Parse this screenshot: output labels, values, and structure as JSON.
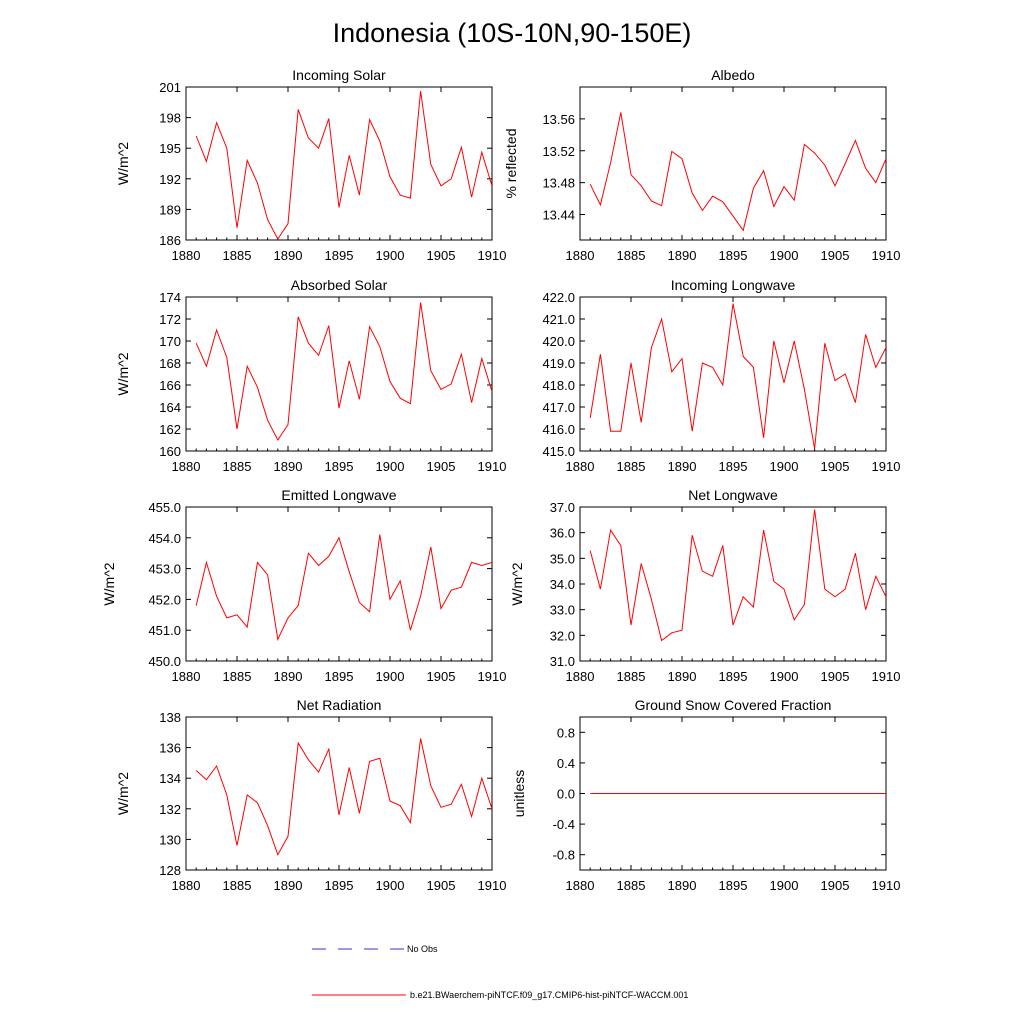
{
  "figure": {
    "title": "Indonesia (10S-10N,90-150E)"
  },
  "colors": {
    "model": "#ff0000",
    "obs": "#3333cc",
    "frame": "#000000"
  },
  "legend": {
    "obs_label": "No Obs",
    "model_label": "b.e21.BWaerchem-piNTCF.f09_g17.CMIP6-hist-piNTCF-WACCM.001"
  },
  "chart_data": [
    {
      "type": "line",
      "title": "Incoming Solar",
      "xlabel": "",
      "ylabel": "W/m^2",
      "xlim": [
        1880,
        1910
      ],
      "ylim": [
        186,
        201
      ],
      "xticks": [
        1880,
        1885,
        1890,
        1895,
        1900,
        1905,
        1910
      ],
      "yticks": [
        186,
        189,
        192,
        195,
        198,
        201
      ],
      "ytick_labels": [
        "186",
        "189",
        "192",
        "195",
        "198",
        "201"
      ],
      "ylabel_side": "left",
      "x": [
        1881,
        1882,
        1883,
        1884,
        1885,
        1886,
        1887,
        1888,
        1889,
        1890,
        1891,
        1892,
        1893,
        1894,
        1895,
        1896,
        1897,
        1898,
        1899,
        1900,
        1901,
        1902,
        1903,
        1904,
        1905,
        1906,
        1907,
        1908,
        1909,
        1910
      ],
      "series": [
        {
          "name": "b.e21.BWaerchem-piNTCF.f09_g17.CMIP6-hist-piNTCF-WACCM.001",
          "values": [
            196.2,
            193.7,
            197.5,
            195.0,
            187.2,
            193.8,
            191.6,
            188.0,
            186.1,
            187.6,
            198.8,
            196.0,
            195.0,
            197.9,
            189.2,
            194.3,
            190.4,
            197.8,
            195.7,
            192.2,
            190.4,
            190.1,
            200.6,
            193.4,
            191.3,
            192.0,
            195.1,
            190.2,
            194.6,
            191.3
          ]
        }
      ]
    },
    {
      "type": "line",
      "title": "Albedo",
      "xlabel": "",
      "ylabel": "% reflected",
      "xlim": [
        1880,
        1910
      ],
      "ylim": [
        13.408,
        13.6
      ],
      "xticks": [
        1880,
        1885,
        1890,
        1895,
        1900,
        1905,
        1910
      ],
      "yticks": [
        13.44,
        13.48,
        13.52,
        13.56
      ],
      "ytick_labels": [
        "13.44",
        "13.48",
        "13.52",
        "13.56"
      ],
      "ylabel_side": "left",
      "x": [
        1881,
        1882,
        1883,
        1884,
        1885,
        1886,
        1887,
        1888,
        1889,
        1890,
        1891,
        1892,
        1893,
        1894,
        1895,
        1896,
        1897,
        1898,
        1899,
        1900,
        1901,
        1902,
        1903,
        1904,
        1905,
        1906,
        1907,
        1908,
        1909,
        1910
      ],
      "series": [
        {
          "name": "b.e21.BWaerchem-piNTCF.f09_g17.CMIP6-hist-piNTCF-WACCM.001",
          "values": [
            13.478,
            13.452,
            13.505,
            13.568,
            13.49,
            13.476,
            13.457,
            13.451,
            13.519,
            13.51,
            13.467,
            13.445,
            13.463,
            13.456,
            13.438,
            13.42,
            13.473,
            13.495,
            13.45,
            13.475,
            13.458,
            13.528,
            13.517,
            13.502,
            13.476,
            13.504,
            13.533,
            13.498,
            13.48,
            13.51
          ]
        }
      ]
    },
    {
      "type": "line",
      "title": "Absorbed Solar",
      "xlabel": "",
      "ylabel": "W/m^2",
      "xlim": [
        1880,
        1910
      ],
      "ylim": [
        160,
        174
      ],
      "xticks": [
        1880,
        1885,
        1890,
        1895,
        1900,
        1905,
        1910
      ],
      "yticks": [
        160,
        162,
        164,
        166,
        168,
        170,
        172,
        174
      ],
      "ytick_labels": [
        "160",
        "162",
        "164",
        "166",
        "168",
        "170",
        "172",
        "174"
      ],
      "ylabel_side": "left",
      "x": [
        1881,
        1882,
        1883,
        1884,
        1885,
        1886,
        1887,
        1888,
        1889,
        1890,
        1891,
        1892,
        1893,
        1894,
        1895,
        1896,
        1897,
        1898,
        1899,
        1900,
        1901,
        1902,
        1903,
        1904,
        1905,
        1906,
        1907,
        1908,
        1909,
        1910
      ],
      "series": [
        {
          "name": "b.e21.BWaerchem-piNTCF.f09_g17.CMIP6-hist-piNTCF-WACCM.001",
          "values": [
            169.8,
            167.7,
            171.0,
            168.5,
            162.0,
            167.7,
            165.8,
            162.8,
            161.0,
            162.4,
            172.2,
            169.8,
            168.7,
            171.4,
            163.9,
            168.2,
            164.7,
            171.3,
            169.5,
            166.3,
            164.8,
            164.3,
            173.5,
            167.3,
            165.6,
            166.1,
            168.8,
            164.4,
            168.4,
            165.4
          ]
        }
      ]
    },
    {
      "type": "line",
      "title": "Incoming Longwave",
      "xlabel": "",
      "ylabel": "",
      "xlim": [
        1880,
        1910
      ],
      "ylim": [
        415,
        422
      ],
      "xticks": [
        1880,
        1885,
        1890,
        1895,
        1900,
        1905,
        1910
      ],
      "yticks": [
        415,
        416,
        417,
        418,
        419,
        420,
        421,
        422
      ],
      "ytick_labels": [
        "415.0",
        "416.0",
        "417.0",
        "418.0",
        "419.0",
        "420.0",
        "421.0",
        "422.0"
      ],
      "ylabel_side": "left",
      "x": [
        1881,
        1882,
        1883,
        1884,
        1885,
        1886,
        1887,
        1888,
        1889,
        1890,
        1891,
        1892,
        1893,
        1894,
        1895,
        1896,
        1897,
        1898,
        1899,
        1900,
        1901,
        1902,
        1903,
        1904,
        1905,
        1906,
        1907,
        1908,
        1909,
        1910
      ],
      "series": [
        {
          "name": "b.e21.BWaerchem-piNTCF.f09_g17.CMIP6-hist-piNTCF-WACCM.001",
          "values": [
            416.5,
            419.4,
            415.9,
            415.9,
            419.0,
            416.3,
            419.7,
            421.0,
            418.6,
            419.2,
            415.9,
            419.0,
            418.8,
            418.0,
            421.7,
            419.3,
            418.8,
            415.6,
            420.0,
            418.1,
            420.0,
            417.8,
            415.1,
            419.9,
            418.2,
            418.5,
            417.2,
            420.3,
            418.8,
            419.7
          ]
        }
      ]
    },
    {
      "type": "line",
      "title": "Emitted Longwave",
      "xlabel": "",
      "ylabel": "W/m^2",
      "xlim": [
        1880,
        1910
      ],
      "ylim": [
        450,
        455
      ],
      "xticks": [
        1880,
        1885,
        1890,
        1895,
        1900,
        1905,
        1910
      ],
      "yticks": [
        450,
        451,
        452,
        453,
        454,
        455
      ],
      "ytick_labels": [
        "450.0",
        "451.0",
        "452.0",
        "453.0",
        "454.0",
        "455.0"
      ],
      "ylabel_side": "left",
      "x": [
        1881,
        1882,
        1883,
        1884,
        1885,
        1886,
        1887,
        1888,
        1889,
        1890,
        1891,
        1892,
        1893,
        1894,
        1895,
        1896,
        1897,
        1898,
        1899,
        1900,
        1901,
        1902,
        1903,
        1904,
        1905,
        1906,
        1907,
        1908,
        1909,
        1910
      ],
      "series": [
        {
          "name": "b.e21.BWaerchem-piNTCF.f09_g17.CMIP6-hist-piNTCF-WACCM.001",
          "values": [
            451.8,
            453.2,
            452.1,
            451.4,
            451.5,
            451.1,
            453.2,
            452.8,
            450.7,
            451.4,
            451.8,
            453.5,
            453.1,
            453.4,
            454.0,
            452.9,
            451.9,
            451.6,
            454.1,
            452.0,
            452.6,
            451.0,
            452.1,
            453.7,
            451.7,
            452.3,
            452.4,
            453.2,
            453.1,
            453.2
          ]
        }
      ]
    },
    {
      "type": "line",
      "title": "Net Longwave",
      "xlabel": "",
      "ylabel": "W/m^2",
      "xlim": [
        1880,
        1910
      ],
      "ylim": [
        31,
        37
      ],
      "xticks": [
        1880,
        1885,
        1890,
        1895,
        1900,
        1905,
        1910
      ],
      "yticks": [
        31,
        32,
        33,
        34,
        35,
        36,
        37
      ],
      "ytick_labels": [
        "31.0",
        "32.0",
        "33.0",
        "34.0",
        "35.0",
        "36.0",
        "37.0"
      ],
      "ylabel_side": "left",
      "x": [
        1881,
        1882,
        1883,
        1884,
        1885,
        1886,
        1887,
        1888,
        1889,
        1890,
        1891,
        1892,
        1893,
        1894,
        1895,
        1896,
        1897,
        1898,
        1899,
        1900,
        1901,
        1902,
        1903,
        1904,
        1905,
        1906,
        1907,
        1908,
        1909,
        1910
      ],
      "series": [
        {
          "name": "b.e21.BWaerchem-piNTCF.f09_g17.CMIP6-hist-piNTCF-WACCM.001",
          "values": [
            35.3,
            33.8,
            36.1,
            35.5,
            32.4,
            34.8,
            33.4,
            31.8,
            32.1,
            32.2,
            35.9,
            34.5,
            34.3,
            35.5,
            32.4,
            33.5,
            33.1,
            36.1,
            34.1,
            33.8,
            32.6,
            33.2,
            36.9,
            33.8,
            33.5,
            33.8,
            35.2,
            33.0,
            34.3,
            33.5
          ]
        }
      ]
    },
    {
      "type": "line",
      "title": "Net Radiation",
      "xlabel": "",
      "ylabel": "W/m^2",
      "xlim": [
        1880,
        1910
      ],
      "ylim": [
        128,
        138
      ],
      "xticks": [
        1880,
        1885,
        1890,
        1895,
        1900,
        1905,
        1910
      ],
      "yticks": [
        128,
        130,
        132,
        134,
        136,
        138
      ],
      "ytick_labels": [
        "128",
        "130",
        "132",
        "134",
        "136",
        "138"
      ],
      "ylabel_side": "left",
      "x": [
        1881,
        1882,
        1883,
        1884,
        1885,
        1886,
        1887,
        1888,
        1889,
        1890,
        1891,
        1892,
        1893,
        1894,
        1895,
        1896,
        1897,
        1898,
        1899,
        1900,
        1901,
        1902,
        1903,
        1904,
        1905,
        1906,
        1907,
        1908,
        1909,
        1910
      ],
      "series": [
        {
          "name": "b.e21.BWaerchem-piNTCF.f09_g17.CMIP6-hist-piNTCF-WACCM.001",
          "values": [
            134.5,
            133.9,
            134.8,
            132.9,
            129.6,
            132.9,
            132.4,
            130.9,
            129.0,
            130.2,
            136.3,
            135.2,
            134.4,
            135.9,
            131.6,
            134.7,
            131.7,
            135.1,
            135.3,
            132.5,
            132.2,
            131.1,
            136.6,
            133.5,
            132.1,
            132.3,
            133.6,
            131.5,
            134.0,
            132.0
          ]
        }
      ]
    },
    {
      "type": "line",
      "title": "Ground Snow Covered Fraction",
      "xlabel": "",
      "ylabel": "unitless",
      "xlim": [
        1880,
        1910
      ],
      "ylim": [
        -1.0,
        1.0
      ],
      "xticks": [
        1880,
        1885,
        1890,
        1895,
        1900,
        1905,
        1910
      ],
      "yticks": [
        -0.8,
        -0.4,
        0.0,
        0.4,
        0.8
      ],
      "ytick_labels": [
        "-0.8",
        "-0.4",
        "0.0",
        "0.4",
        "0.8"
      ],
      "ylabel_side": "left",
      "x": [
        1881,
        1910
      ],
      "series": [
        {
          "name": "b.e21.BWaerchem-piNTCF.f09_g17.CMIP6-hist-piNTCF-WACCM.001",
          "values": [
            0.0,
            0.0
          ]
        }
      ]
    }
  ]
}
